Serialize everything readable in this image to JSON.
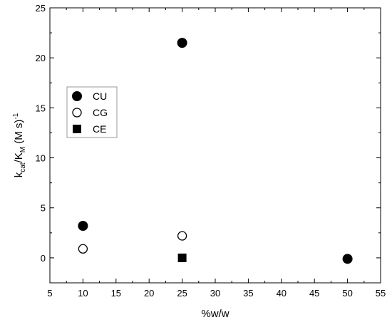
{
  "chart_data": {
    "type": "scatter",
    "xlabel": "%w/w",
    "ylabel_parts": {
      "k": "k",
      "k_sub": "cat",
      "slash": "/K",
      "K_sub": "M",
      "tail": " (M s)",
      "sup": "-1"
    },
    "xlim": [
      5,
      55
    ],
    "ylim": [
      -2.5,
      25
    ],
    "x_ticks": [
      5,
      10,
      15,
      20,
      25,
      30,
      35,
      40,
      45,
      50,
      55
    ],
    "y_ticks": [
      0,
      5,
      10,
      15,
      20,
      25
    ],
    "grid": false,
    "legend_position": "upper-left",
    "series": [
      {
        "name": "CU",
        "marker": "filled-circle",
        "color": "#000000",
        "points": [
          {
            "x": 10,
            "y": 3.2
          },
          {
            "x": 25,
            "y": 21.5
          },
          {
            "x": 50,
            "y": -0.1
          }
        ]
      },
      {
        "name": "CG",
        "marker": "open-circle",
        "color": "#000000",
        "points": [
          {
            "x": 10,
            "y": 0.9
          },
          {
            "x": 25,
            "y": 2.2
          }
        ]
      },
      {
        "name": "CE",
        "marker": "filled-square",
        "color": "#000000",
        "points": [
          {
            "x": 25,
            "y": 0.0
          }
        ]
      }
    ]
  }
}
